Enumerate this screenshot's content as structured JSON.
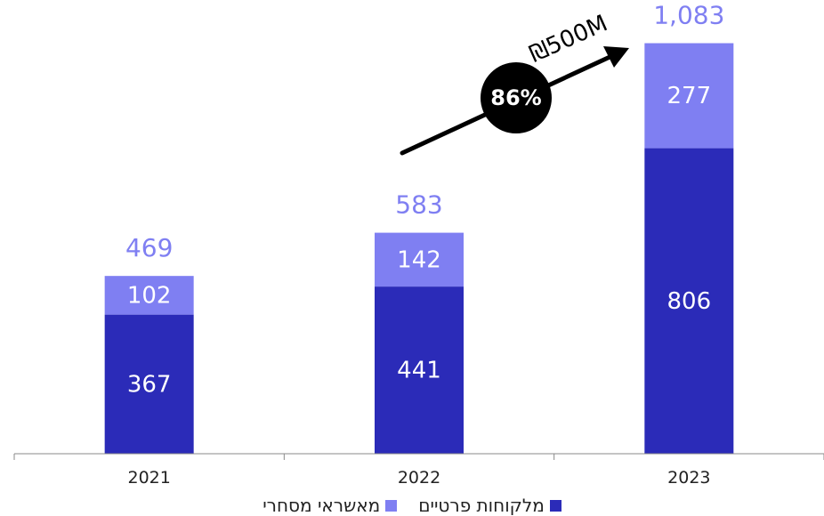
{
  "chart_data": {
    "type": "bar",
    "stacked": true,
    "categories": [
      "2021",
      "2022",
      "2023"
    ],
    "series": [
      {
        "name": "מלקוחות פרטיים",
        "values": [
          367,
          441,
          806
        ],
        "color": "#2b2bb8"
      },
      {
        "name": "מאשראי מסחרי",
        "values": [
          102,
          142,
          277
        ],
        "color": "#7f7ff2"
      }
    ],
    "totals": [
      "469",
      "583",
      "1,083"
    ],
    "total_color": "#7f7ff2",
    "ylim": [
      0,
      1150
    ],
    "grid": false,
    "legend_position": "bottom",
    "annotations": {
      "growth_badge": "86%",
      "arrow_label": "₪500M"
    }
  }
}
